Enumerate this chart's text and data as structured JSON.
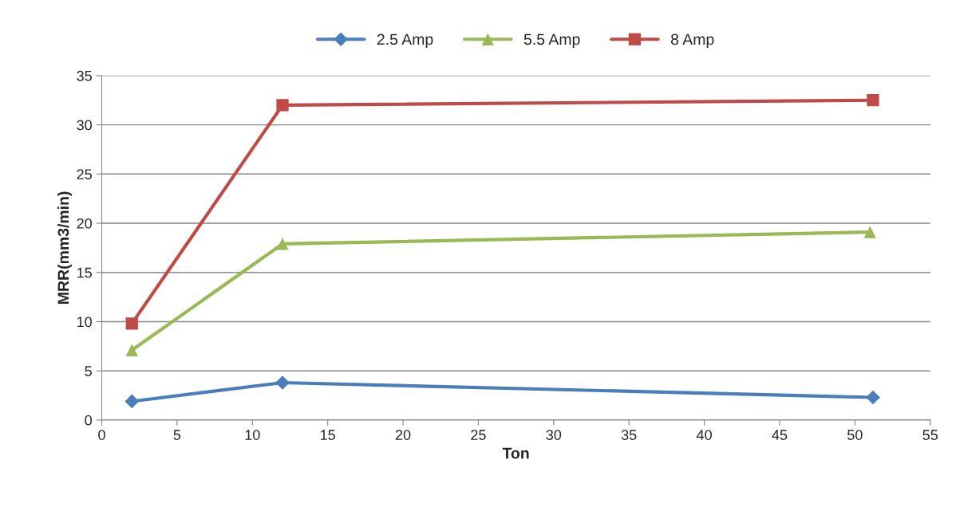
{
  "chart_data": {
    "type": "line",
    "xlabel": "Ton",
    "ylabel": "MRR(mm3/min)",
    "xlim": [
      0,
      55
    ],
    "xticks": [
      0,
      5,
      10,
      15,
      20,
      25,
      30,
      35,
      40,
      45,
      50,
      55
    ],
    "ylim": [
      0,
      35
    ],
    "yticks": [
      0,
      5,
      10,
      15,
      20,
      25,
      30,
      35
    ],
    "grid": "y",
    "legend": "top",
    "line_style": "solid",
    "series": [
      {
        "name": "2.5 Amp",
        "color": "#4a7ebb",
        "marker": "diamond",
        "x": [
          2,
          12,
          51.2
        ],
        "values": [
          1.9,
          3.8,
          2.3
        ]
      },
      {
        "name": "5.5 Amp",
        "color": "#98b954",
        "marker": "triangle",
        "x": [
          2,
          12,
          51
        ],
        "values": [
          7.1,
          17.9,
          19.1
        ]
      },
      {
        "name": "8 Amp",
        "color": "#be4b48",
        "marker": "square",
        "x": [
          2,
          12,
          51.2
        ],
        "values": [
          9.8,
          32.0,
          32.5
        ]
      }
    ]
  }
}
